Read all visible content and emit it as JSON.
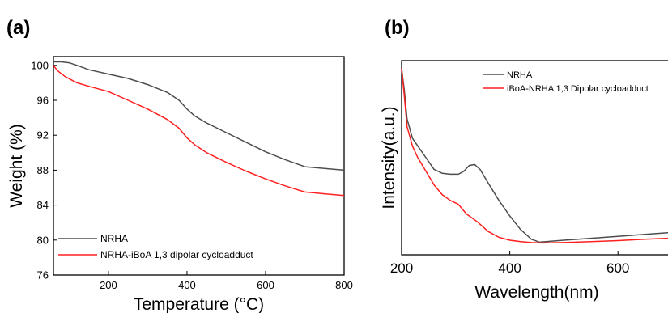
{
  "chart_data": [
    {
      "panel_label": "(a)",
      "type": "line",
      "title": "",
      "xlabel": "Temperature (°C)",
      "ylabel": "Weight (%)",
      "xlim": [
        60,
        800
      ],
      "ylim": [
        76,
        101
      ],
      "xticks": [
        200,
        400,
        600,
        800
      ],
      "yticks": [
        76,
        80,
        84,
        88,
        92,
        96,
        100
      ],
      "grid": false,
      "legend_position": "bottom-left",
      "series": [
        {
          "name": "NRHA",
          "color": "#4d4d4d",
          "x": [
            60,
            80,
            100,
            120,
            150,
            200,
            250,
            300,
            350,
            380,
            400,
            420,
            450,
            500,
            550,
            600,
            650,
            700,
            750,
            800
          ],
          "y": [
            100.4,
            100.4,
            100.3,
            100.0,
            99.5,
            99.0,
            98.5,
            97.8,
            96.9,
            96.0,
            95.0,
            94.2,
            93.4,
            92.3,
            91.2,
            90.1,
            89.2,
            88.4,
            88.2,
            88.0
          ]
        },
        {
          "name": "NRHA-iBoA 1,3 dipolar cycloadduct",
          "color": "#ff2020",
          "x": [
            60,
            70,
            90,
            120,
            150,
            200,
            250,
            300,
            350,
            380,
            400,
            420,
            450,
            500,
            550,
            600,
            650,
            700,
            750,
            800
          ],
          "y": [
            100.0,
            99.4,
            98.7,
            98.0,
            97.6,
            97.0,
            96.0,
            95.0,
            93.8,
            92.8,
            91.7,
            90.9,
            90.0,
            88.9,
            87.9,
            87.0,
            86.2,
            85.5,
            85.3,
            85.1
          ]
        }
      ]
    },
    {
      "panel_label": "(b)",
      "type": "line",
      "title": "",
      "xlabel": "Wavelength(nm)",
      "ylabel": "Intensity(a.u.)",
      "xlim": [
        200,
        700
      ],
      "ylim": [
        0,
        100
      ],
      "xticks": [
        200,
        400,
        600
      ],
      "yticks": [],
      "grid": false,
      "legend_position": "top-right",
      "series": [
        {
          "name": "NRHA",
          "color": "#4d4d4d",
          "x": [
            200,
            205,
            210,
            220,
            230,
            245,
            260,
            275,
            290,
            305,
            315,
            325,
            335,
            345,
            360,
            380,
            400,
            420,
            440,
            455,
            500,
            550,
            600,
            650,
            700
          ],
          "y": [
            96,
            85,
            70,
            60,
            56,
            50,
            44,
            42,
            41.5,
            41.5,
            43,
            46,
            46.5,
            44,
            37,
            28,
            20,
            13,
            8,
            6.5,
            7.5,
            8.5,
            9.5,
            10.5,
            11.5
          ]
        },
        {
          "name": "iBoA-NRHA 1,3 Dipolar cycloadduct",
          "color": "#ff2020",
          "x": [
            200,
            205,
            210,
            220,
            230,
            245,
            260,
            275,
            290,
            305,
            320,
            340,
            360,
            380,
            400,
            420,
            440,
            460,
            500,
            550,
            600,
            650,
            700
          ],
          "y": [
            96,
            82,
            66,
            56,
            50,
            43,
            36,
            31,
            28,
            26,
            21,
            17,
            12,
            9,
            7.5,
            6.8,
            6.3,
            6.1,
            6.3,
            6.8,
            7.3,
            8.0,
            8.6
          ]
        }
      ]
    }
  ]
}
